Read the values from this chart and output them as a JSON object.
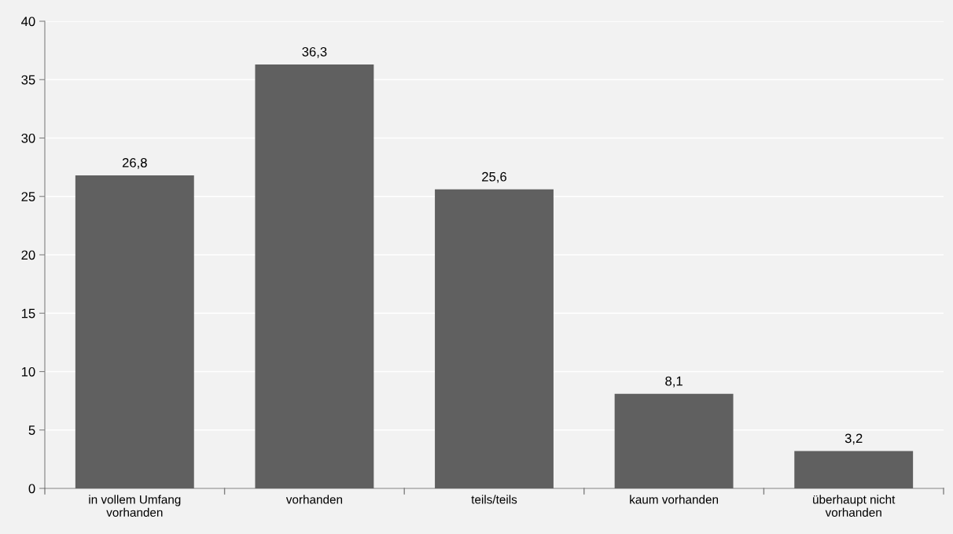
{
  "chart_data": {
    "type": "bar",
    "categories": [
      "in vollem Umfang\nvorhanden",
      "vorhanden",
      "teils/teils",
      "kaum vorhanden",
      "überhaupt nicht\nvorhanden"
    ],
    "values": [
      26.8,
      36.3,
      25.6,
      8.1,
      3.2
    ],
    "value_labels": [
      "26,8",
      "36,3",
      "25,6",
      "8,1",
      "3,2"
    ],
    "color": "#606060",
    "ylim": [
      0,
      40
    ],
    "yticks": [
      0,
      5,
      10,
      15,
      20,
      25,
      30,
      35,
      40
    ],
    "grid": "y"
  }
}
